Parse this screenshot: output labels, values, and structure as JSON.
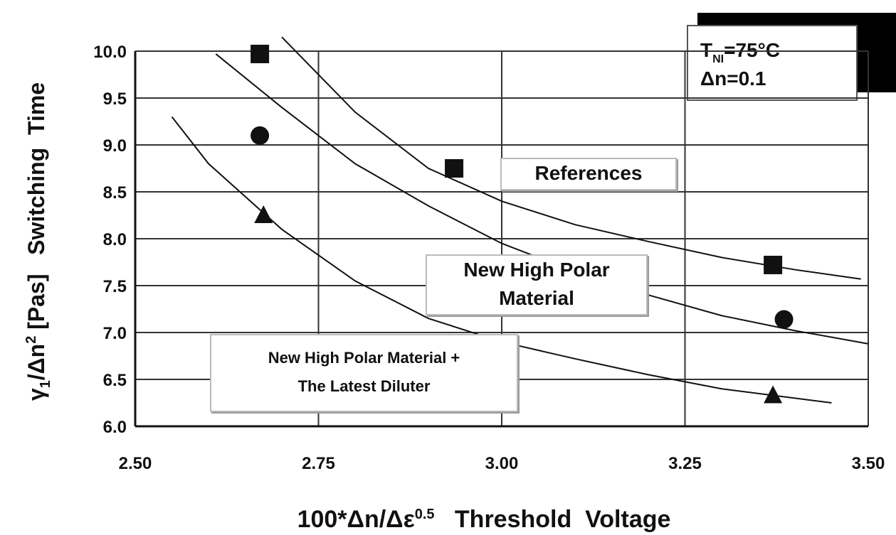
{
  "chart_data": {
    "type": "scatter",
    "ylabel_parts": [
      {
        "text": "γ"
      },
      {
        "text": "1",
        "shift": "sub"
      },
      {
        "text": "/Δn"
      },
      {
        "text": "2",
        "shift": "super"
      },
      {
        "text": " [Pas]   Switching  Time"
      }
    ],
    "xlabel_parts": [
      {
        "text": "100*Δn/Δε"
      },
      {
        "text": "0.5",
        "shift": "super"
      },
      {
        "text": "   Threshold  Voltage"
      }
    ],
    "annotation": {
      "line1": [
        "T",
        "NI",
        "=75°C"
      ],
      "line2": "Δn=0.1"
    },
    "xlim": [
      2.5,
      3.5
    ],
    "ylim": [
      6.0,
      10.0
    ],
    "xticks": [
      {
        "value": 2.5,
        "label": "2.50"
      },
      2.75,
      {
        "value": 3.0,
        "label": "3.00"
      },
      3.25,
      {
        "value": 3.5,
        "label": "3.50"
      }
    ],
    "yticks": [
      {
        "value": 6.0,
        "label": "6.0"
      },
      6.5,
      {
        "value": 7.0,
        "label": "7.0"
      },
      7.5,
      {
        "value": 8.0,
        "label": "8.0"
      },
      8.5,
      {
        "value": 9.0,
        "label": "9.0"
      },
      9.5,
      {
        "value": 10.0,
        "label": "10.0"
      }
    ],
    "grid": true,
    "series": [
      {
        "name": "References",
        "marker": "square",
        "color": "#111111",
        "x": [
          2.67,
          2.935,
          3.37
        ],
        "values": [
          9.97,
          8.75,
          7.72
        ],
        "fit_x": [
          2.7,
          2.8,
          2.9,
          3.0,
          3.1,
          3.2,
          3.3,
          3.4,
          3.49
        ],
        "fit_values": [
          10.15,
          9.35,
          8.75,
          8.4,
          8.15,
          7.97,
          7.8,
          7.67,
          7.57
        ]
      },
      {
        "name": "New High Polar Material",
        "marker": "circle",
        "color": "#111111",
        "x": [
          2.67,
          3.385
        ],
        "values": [
          9.1,
          7.14
        ],
        "fit_x": [
          2.61,
          2.7,
          2.8,
          2.9,
          3.0,
          3.1,
          3.2,
          3.3,
          3.4,
          3.5
        ],
        "fit_values": [
          9.97,
          9.4,
          8.8,
          8.35,
          7.95,
          7.65,
          7.4,
          7.18,
          7.02,
          6.88
        ]
      },
      {
        "name": "New High Polar Material + The Latest Diluter",
        "marker": "triangle",
        "color": "#111111",
        "x": [
          2.675,
          3.37
        ],
        "values": [
          8.25,
          6.33
        ],
        "fit_x": [
          2.55,
          2.6,
          2.7,
          2.8,
          2.9,
          3.0,
          3.1,
          3.2,
          3.3,
          3.45
        ],
        "fit_values": [
          9.3,
          8.8,
          8.1,
          7.55,
          7.15,
          6.9,
          6.72,
          6.55,
          6.4,
          6.25
        ]
      }
    ]
  }
}
